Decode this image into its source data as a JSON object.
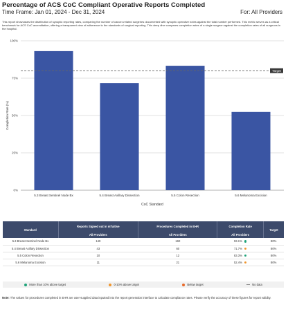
{
  "header": {
    "title": "Percentage of ACS CoC Compliant Operative Reports Completed",
    "timeframe": "Time Frame: Jan 01, 2024 - Dec 31, 2024",
    "for_providers": "For: All Providers",
    "description": "This report showcases the distribution of synoptic reporting rates, comparing the number of cancer-related surgeries documented with synoptic operative notes against the total number performed. This metric serves as a critical benchmark for ACS CoC accreditation, offering a transparent view of adherence to the standards of surgical reporting. This deep dive compares completion rates of a single surgeon against the completion rates of all surgeons in the hospital."
  },
  "chart_data": {
    "type": "bar",
    "categories": [
      "5.3 Breast Sentinel Node Bx",
      "5.4 Breast Axillary Dissection",
      "5.5 Colon Resection",
      "5.6 Melanoma Excision"
    ],
    "values": [
      93.1,
      71.7,
      83.3,
      52.4
    ],
    "xlabel": "CoC Standard",
    "ylabel": "Completion Rate (%)",
    "ylim": [
      0,
      100
    ],
    "yticks": [
      "0%",
      "25%",
      "50%",
      "75%",
      "100%"
    ],
    "target": {
      "value": 80,
      "label": "Target"
    },
    "bar_color": "#3a55a3",
    "grid": true
  },
  "table": {
    "headers": [
      "Standard",
      "Reports Signed out in mTuitive",
      "Procedures Completed in EHR",
      "Completion Rate",
      "Target"
    ],
    "subheaders": [
      "All Providers",
      "All Providers",
      "All Providers"
    ],
    "rows": [
      {
        "standard": "5.3 Breast Sentinel Node Bx",
        "signed": "149",
        "completed": "160",
        "rate": "93.1%",
        "status": "green",
        "target": "80%"
      },
      {
        "standard": "5.4 Breast Axillary Dissection",
        "signed": "43",
        "completed": "60",
        "rate": "71.7%",
        "status": "orange",
        "target": "80%"
      },
      {
        "standard": "5.5 Colon Resection",
        "signed": "10",
        "completed": "12",
        "rate": "83.3%",
        "status": "green",
        "target": "80%"
      },
      {
        "standard": "5.6 Melanoma Excision",
        "signed": "11",
        "completed": "21",
        "rate": "52.4%",
        "status": "orange",
        "target": "80%"
      }
    ]
  },
  "legend": {
    "above": "More than 10% above target",
    "near": "0-10% above target",
    "below": "Below target",
    "nodata": "No data"
  },
  "colors": {
    "green": "#1fa37a",
    "orange": "#f0962d",
    "red": "#e86a2b"
  },
  "note": {
    "label": "Note:",
    "text": "The values for procedures completed in EHR are user-supplied data inputted into the report generation interface to calculate compliance rates. Please verify the accuracy of these figures for report validity."
  }
}
